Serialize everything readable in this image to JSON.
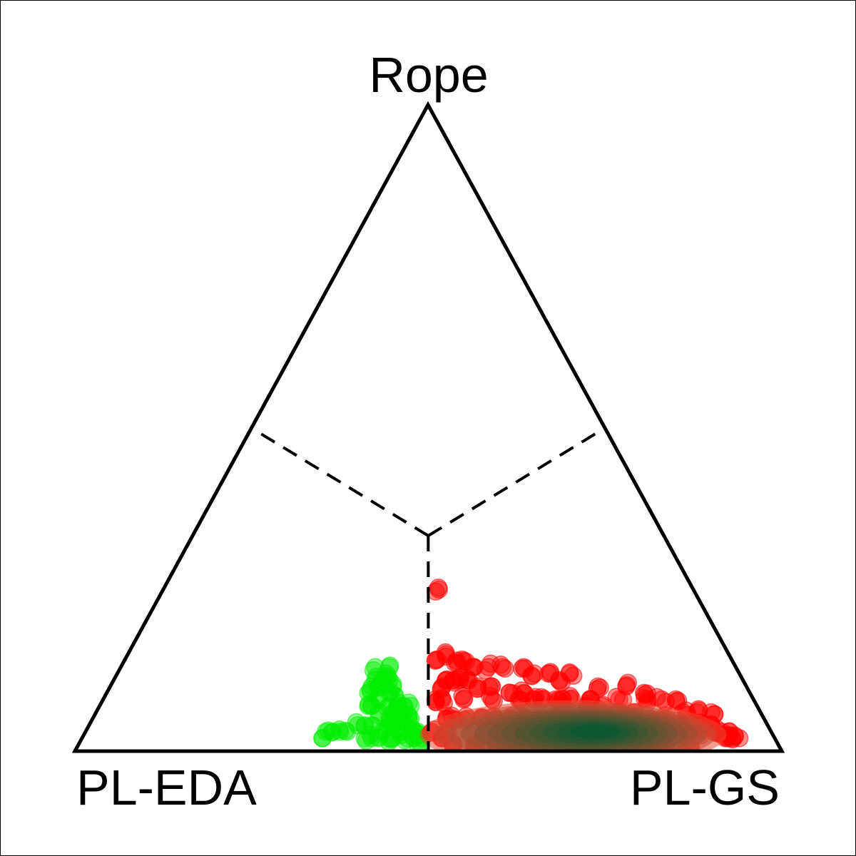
{
  "chart_data": {
    "type": "scatter",
    "plot_kind": "ternary simplex (barycentric) scatter with density shading",
    "vertices": {
      "top": "Rope",
      "bottom_left": "PL-EDA",
      "bottom_right": "PL-GS"
    },
    "region_boundaries": "dashed lines from centroid to edge midpoints",
    "colors": {
      "outline": "#000000",
      "group_a": "#00ee00",
      "group_b": "#ff0000",
      "density_low": "#e34a33",
      "density_high": "#005a32"
    },
    "coordinate_order": [
      "PL-EDA",
      "PL-GS",
      "Rope"
    ],
    "groups": [
      {
        "color_name": "green",
        "region": "PL-EDA is the largest component",
        "point_count_approx": 180,
        "points": [
          [
            0.64,
            0.34,
            0.02
          ],
          [
            0.61,
            0.36,
            0.03
          ],
          [
            0.58,
            0.4,
            0.02
          ],
          [
            0.55,
            0.42,
            0.03
          ],
          [
            0.53,
            0.43,
            0.04
          ],
          [
            0.52,
            0.46,
            0.02
          ],
          [
            0.5,
            0.45,
            0.05
          ],
          [
            0.51,
            0.44,
            0.05
          ],
          [
            0.52,
            0.41,
            0.07
          ],
          [
            0.51,
            0.4,
            0.09
          ],
          [
            0.5,
            0.4,
            0.1
          ],
          [
            0.5,
            0.38,
            0.12
          ],
          [
            0.49,
            0.38,
            0.13
          ],
          [
            0.5,
            0.43,
            0.07
          ],
          [
            0.49,
            0.44,
            0.07
          ],
          [
            0.5,
            0.48,
            0.02
          ],
          [
            0.505,
            0.465,
            0.03
          ],
          [
            0.51,
            0.48,
            0.01
          ],
          [
            0.52,
            0.45,
            0.03
          ],
          [
            0.53,
            0.42,
            0.05
          ],
          [
            0.54,
            0.44,
            0.02
          ],
          [
            0.545,
            0.435,
            0.02
          ],
          [
            0.56,
            0.4,
            0.04
          ],
          [
            0.57,
            0.41,
            0.02
          ],
          [
            0.58,
            0.38,
            0.04
          ],
          [
            0.6,
            0.37,
            0.03
          ],
          [
            0.62,
            0.35,
            0.03
          ],
          [
            0.63,
            0.34,
            0.03
          ],
          [
            0.55,
            0.38,
            0.07
          ],
          [
            0.53,
            0.39,
            0.08
          ],
          [
            0.52,
            0.38,
            0.1
          ],
          [
            0.54,
            0.37,
            0.09
          ],
          [
            0.53,
            0.37,
            0.1
          ],
          [
            0.505,
            0.42,
            0.075
          ],
          [
            0.51,
            0.47,
            0.02
          ],
          [
            0.5,
            0.47,
            0.03
          ],
          [
            0.52,
            0.42,
            0.06
          ],
          [
            0.505,
            0.41,
            0.085
          ],
          [
            0.5,
            0.445,
            0.055
          ],
          [
            0.54,
            0.4,
            0.06
          ],
          [
            0.535,
            0.425,
            0.04
          ],
          [
            0.56,
            0.42,
            0.02
          ],
          [
            0.57,
            0.39,
            0.04
          ],
          [
            0.525,
            0.445,
            0.03
          ],
          [
            0.515,
            0.425,
            0.06
          ],
          [
            0.5,
            0.39,
            0.11
          ],
          [
            0.515,
            0.38,
            0.105
          ],
          [
            0.545,
            0.385,
            0.07
          ],
          [
            0.52,
            0.37,
            0.11
          ],
          [
            0.51,
            0.36,
            0.13
          ]
        ]
      },
      {
        "color_name": "red",
        "region": "PL-GS is the largest component",
        "point_count_approx": 900,
        "density_peak": [
          0.25,
          0.72,
          0.03
        ],
        "points": [
          [
            0.48,
            0.49,
            0.03
          ],
          [
            0.47,
            0.51,
            0.02
          ],
          [
            0.46,
            0.51,
            0.03
          ],
          [
            0.45,
            0.5,
            0.05
          ],
          [
            0.44,
            0.48,
            0.08
          ],
          [
            0.43,
            0.47,
            0.1
          ],
          [
            0.42,
            0.47,
            0.11
          ],
          [
            0.41,
            0.48,
            0.11
          ],
          [
            0.4,
            0.49,
            0.11
          ],
          [
            0.39,
            0.5,
            0.11
          ],
          [
            0.38,
            0.52,
            0.1
          ],
          [
            0.36,
            0.54,
            0.1
          ],
          [
            0.34,
            0.57,
            0.09
          ],
          [
            0.32,
            0.59,
            0.09
          ],
          [
            0.3,
            0.62,
            0.08
          ],
          [
            0.28,
            0.64,
            0.08
          ],
          [
            0.26,
            0.66,
            0.08
          ],
          [
            0.24,
            0.69,
            0.07
          ],
          [
            0.22,
            0.71,
            0.07
          ],
          [
            0.2,
            0.74,
            0.06
          ],
          [
            0.18,
            0.76,
            0.06
          ],
          [
            0.16,
            0.79,
            0.05
          ],
          [
            0.14,
            0.81,
            0.05
          ],
          [
            0.12,
            0.84,
            0.04
          ],
          [
            0.1,
            0.87,
            0.03
          ],
          [
            0.08,
            0.89,
            0.03
          ],
          [
            0.07,
            0.91,
            0.02
          ],
          [
            0.38,
            0.48,
            0.14
          ],
          [
            0.39,
            0.47,
            0.14
          ],
          [
            0.4,
            0.45,
            0.15
          ],
          [
            0.42,
            0.44,
            0.14
          ],
          [
            0.35,
            0.52,
            0.13
          ],
          [
            0.29,
            0.59,
            0.12
          ],
          [
            0.24,
            0.64,
            0.12
          ],
          [
            0.27,
            0.61,
            0.12
          ],
          [
            0.3,
            0.57,
            0.13
          ],
          [
            0.17,
            0.73,
            0.1
          ],
          [
            0.13,
            0.79,
            0.08
          ],
          [
            0.36,
            0.39,
            0.25
          ],
          [
            0.44,
            0.51,
            0.05
          ],
          [
            0.42,
            0.53,
            0.05
          ],
          [
            0.4,
            0.55,
            0.05
          ],
          [
            0.38,
            0.57,
            0.05
          ],
          [
            0.36,
            0.59,
            0.05
          ],
          [
            0.34,
            0.61,
            0.05
          ],
          [
            0.32,
            0.63,
            0.05
          ],
          [
            0.3,
            0.65,
            0.05
          ],
          [
            0.28,
            0.67,
            0.05
          ],
          [
            0.26,
            0.69,
            0.05
          ],
          [
            0.24,
            0.71,
            0.05
          ],
          [
            0.22,
            0.73,
            0.05
          ],
          [
            0.2,
            0.76,
            0.04
          ],
          [
            0.18,
            0.78,
            0.04
          ],
          [
            0.16,
            0.8,
            0.04
          ],
          [
            0.14,
            0.82,
            0.04
          ],
          [
            0.12,
            0.85,
            0.03
          ],
          [
            0.1,
            0.86,
            0.04
          ],
          [
            0.09,
            0.87,
            0.04
          ],
          [
            0.08,
            0.88,
            0.04
          ],
          [
            0.07,
            0.9,
            0.03
          ],
          [
            0.06,
            0.92,
            0.02
          ],
          [
            0.05,
            0.93,
            0.02
          ],
          [
            0.06,
            0.91,
            0.03
          ],
          [
            0.46,
            0.53,
            0.01
          ],
          [
            0.43,
            0.56,
            0.01
          ],
          [
            0.4,
            0.59,
            0.01
          ],
          [
            0.37,
            0.62,
            0.01
          ],
          [
            0.34,
            0.65,
            0.01
          ],
          [
            0.31,
            0.68,
            0.01
          ],
          [
            0.28,
            0.71,
            0.01
          ],
          [
            0.25,
            0.74,
            0.01
          ],
          [
            0.22,
            0.77,
            0.01
          ],
          [
            0.19,
            0.8,
            0.01
          ],
          [
            0.16,
            0.83,
            0.01
          ],
          [
            0.13,
            0.86,
            0.01
          ],
          [
            0.45,
            0.47,
            0.08
          ],
          [
            0.41,
            0.51,
            0.08
          ],
          [
            0.37,
            0.55,
            0.08
          ],
          [
            0.33,
            0.59,
            0.08
          ],
          [
            0.31,
            0.61,
            0.08
          ],
          [
            0.27,
            0.65,
            0.08
          ],
          [
            0.23,
            0.69,
            0.08
          ],
          [
            0.19,
            0.73,
            0.08
          ],
          [
            0.15,
            0.77,
            0.08
          ],
          [
            0.11,
            0.83,
            0.06
          ],
          [
            0.37,
            0.5,
            0.13
          ],
          [
            0.33,
            0.54,
            0.13
          ],
          [
            0.26,
            0.63,
            0.11
          ],
          [
            0.21,
            0.69,
            0.1
          ],
          [
            0.15,
            0.76,
            0.09
          ],
          [
            0.11,
            0.81,
            0.08
          ],
          [
            0.09,
            0.85,
            0.06
          ],
          [
            0.07,
            0.87,
            0.06
          ]
        ]
      }
    ],
    "density_contours": "kernel density shading over red group, red at edges to dark green at peak"
  }
}
